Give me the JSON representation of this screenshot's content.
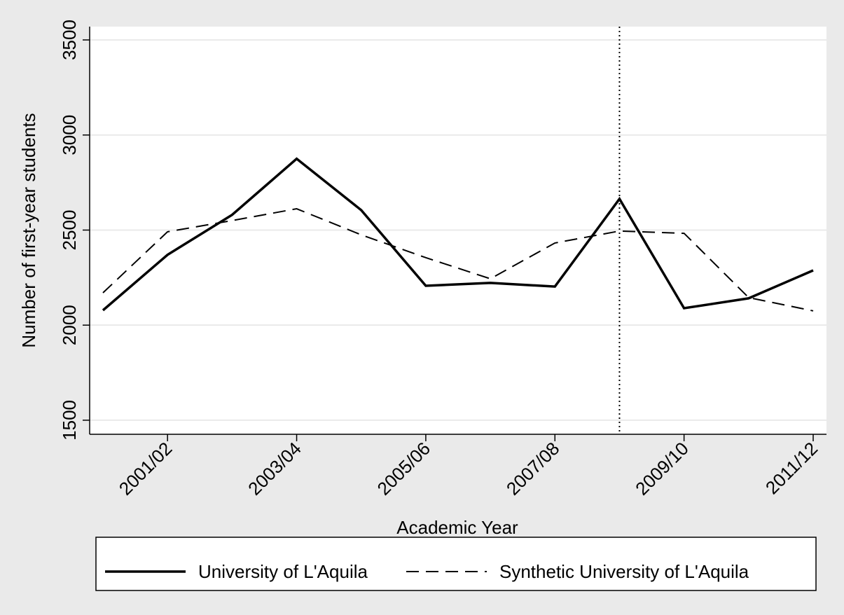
{
  "chart_data": {
    "type": "line",
    "xlabel": "Academic Year",
    "ylabel": "Number of first-year students",
    "categories": [
      null,
      "2001/02",
      null,
      "2003/04",
      null,
      "2005/06",
      null,
      "2007/08",
      null,
      "2009/10",
      null,
      "2011/12"
    ],
    "series": [
      {
        "name": "University of L'Aquila",
        "color": "#000000",
        "dash": "solid",
        "values": [
          2078,
          2370,
          2580,
          2875,
          2605,
          2207,
          2222,
          2203,
          2664,
          2089,
          2141,
          2288
        ]
      },
      {
        "name": "Synthetic University of L'Aquila",
        "color": "#000000",
        "dash": "dashed",
        "values": [
          2170,
          2491,
          2550,
          2612,
          2475,
          2355,
          2244,
          2432,
          2495,
          2483,
          2145,
          2075
        ]
      }
    ],
    "ylim": [
      1426,
      3570
    ],
    "yticks": [
      1500,
      2000,
      2500,
      3000,
      3500
    ],
    "grid": true,
    "reference_line": {
      "category_index": 8,
      "style": "dotted"
    },
    "legend": "bottom"
  }
}
